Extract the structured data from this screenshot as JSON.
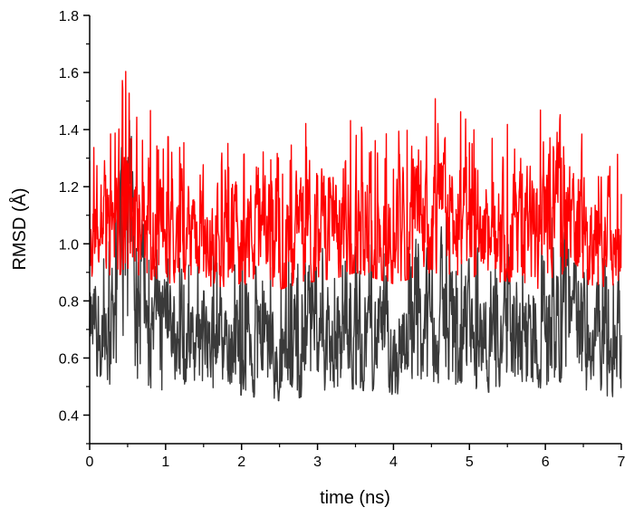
{
  "chart_data": {
    "type": "line",
    "xlabel": "time (ns)",
    "ylabel": "RMSD (Å)",
    "xlim": [
      0,
      7
    ],
    "ylim": [
      0.3,
      1.8
    ],
    "x_ticks": [
      "0",
      "1",
      "2",
      "3",
      "4",
      "5",
      "6",
      "7"
    ],
    "y_ticks": [
      "0.4",
      "0.6",
      "0.8",
      "1.0",
      "1.2",
      "1.4",
      "1.6",
      "1.8"
    ],
    "grid": false,
    "x": [
      0,
      0.25,
      0.5,
      0.75,
      1,
      1.25,
      1.5,
      1.75,
      2,
      2.25,
      2.5,
      2.75,
      3,
      3.25,
      3.5,
      3.75,
      4,
      4.25,
      4.5,
      4.75,
      5,
      5.25,
      5.5,
      5.75,
      6,
      6.25,
      6.5,
      6.75,
      7
    ],
    "series": [
      {
        "color": "#3a3a3a",
        "values": [
          0.66,
          0.72,
          1.2,
          0.78,
          0.74,
          0.68,
          0.72,
          0.7,
          0.68,
          0.66,
          0.64,
          0.68,
          0.72,
          0.66,
          0.7,
          0.68,
          0.64,
          0.72,
          0.76,
          0.74,
          0.72,
          0.68,
          0.7,
          0.68,
          0.76,
          0.78,
          0.7,
          0.66,
          0.64
        ],
        "low": [
          0.49,
          0.46,
          0.52,
          0.5,
          0.48,
          0.49,
          0.5,
          0.48,
          0.47,
          0.46,
          0.45,
          0.46,
          0.48,
          0.5,
          0.49,
          0.48,
          0.46,
          0.5,
          0.52,
          0.5,
          0.5,
          0.48,
          0.49,
          0.48,
          0.5,
          0.52,
          0.48,
          0.47,
          0.46
        ],
        "high": [
          1.0,
          1.05,
          1.48,
          1.0,
          0.98,
          0.95,
          1.0,
          0.98,
          0.96,
          0.95,
          0.94,
          0.98,
          1.05,
          0.98,
          1.02,
          1.0,
          0.96,
          1.04,
          1.08,
          1.12,
          1.06,
          0.98,
          1.0,
          0.98,
          1.1,
          1.12,
          1.0,
          0.95,
          0.98
        ]
      },
      {
        "color": "#ff0000",
        "values": [
          1.04,
          1.05,
          1.1,
          1.08,
          1.05,
          1.04,
          1.03,
          1.02,
          1.04,
          1.03,
          1.02,
          1.04,
          1.05,
          1.06,
          1.08,
          1.06,
          1.04,
          1.08,
          1.1,
          1.09,
          1.06,
          1.04,
          1.05,
          1.03,
          1.06,
          1.1,
          1.04,
          1.03,
          1.05
        ],
        "low": [
          0.86,
          0.88,
          0.9,
          0.88,
          0.86,
          0.87,
          0.85,
          0.85,
          0.86,
          0.85,
          0.84,
          0.86,
          0.87,
          0.88,
          0.9,
          0.88,
          0.86,
          0.88,
          0.9,
          0.89,
          0.88,
          0.86,
          0.87,
          0.85,
          0.84,
          0.9,
          0.86,
          0.85,
          0.86
        ],
        "high": [
          1.34,
          1.38,
          1.66,
          1.5,
          1.38,
          1.36,
          1.32,
          1.34,
          1.4,
          1.36,
          1.32,
          1.38,
          1.5,
          1.44,
          1.52,
          1.44,
          1.4,
          1.48,
          1.55,
          1.5,
          1.44,
          1.38,
          1.42,
          1.36,
          1.53,
          1.48,
          1.38,
          1.34,
          1.39
        ]
      }
    ]
  }
}
